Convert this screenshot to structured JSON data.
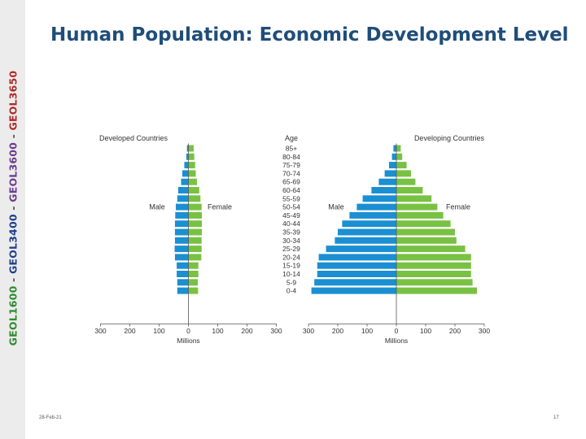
{
  "sidebar": {
    "parts": [
      {
        "text": "GEOL1600",
        "color": "#2f8b2f"
      },
      {
        "text": " - ",
        "color": "#555555"
      },
      {
        "text": "GEOL3400",
        "color": "#1f3f8a"
      },
      {
        "text": " - ",
        "color": "#555555"
      },
      {
        "text": "GEOL3600",
        "color": "#6b3d8c"
      },
      {
        "text": " - ",
        "color": "#555555"
      },
      {
        "text": "GEOL3650",
        "color": "#b02a2a"
      }
    ]
  },
  "slide": {
    "title": "Human Population: Economic Development Level",
    "date": "28-Feb-21",
    "page": "17"
  },
  "chart_data": {
    "type": "bar",
    "orientation": "horizontal-population-pyramid",
    "age_header": "Age",
    "categories": [
      "85+",
      "80-84",
      "75-79",
      "70-74",
      "65-69",
      "60-64",
      "55-59",
      "50-54",
      "45-49",
      "40-44",
      "35-39",
      "30-34",
      "25-29",
      "20-24",
      "15-19",
      "10-14",
      "5-9",
      "0-4"
    ],
    "xlabel": "Millions",
    "colors": {
      "male": "#1b8fd2",
      "female": "#79c143"
    },
    "panels": [
      {
        "title": "Developed Countries",
        "male_label": "Male",
        "female_label": "Female",
        "xlim": [
          -300,
          300
        ],
        "ticks": [
          300,
          200,
          100,
          0,
          100,
          200,
          300
        ],
        "series": [
          {
            "name": "Male",
            "values": [
              5,
              7,
              14,
              21,
              25,
              35,
              38,
              43,
              45,
              46,
              46,
              46,
              47,
              46,
              40,
              40,
              38,
              38
            ]
          },
          {
            "name": "Female",
            "values": [
              18,
              20,
              23,
              25,
              29,
              37,
              41,
              45,
              46,
              46,
              46,
              45,
              45,
              44,
              34,
              34,
              32,
              33
            ]
          }
        ]
      },
      {
        "title": "Developing Countries",
        "male_label": "Male",
        "female_label": "Female",
        "xlim": [
          -300,
          300
        ],
        "ticks": [
          300,
          200,
          100,
          0,
          100,
          200,
          300
        ],
        "series": [
          {
            "name": "Male",
            "values": [
              10,
              15,
              25,
              40,
              60,
              85,
              115,
              135,
              160,
              185,
              200,
              210,
              240,
              265,
              270,
              270,
              280,
              290
            ]
          },
          {
            "name": "Female",
            "values": [
              15,
              20,
              35,
              50,
              65,
              90,
              120,
              140,
              160,
              185,
              200,
              205,
              235,
              255,
              255,
              255,
              260,
              275
            ]
          }
        ]
      }
    ]
  }
}
